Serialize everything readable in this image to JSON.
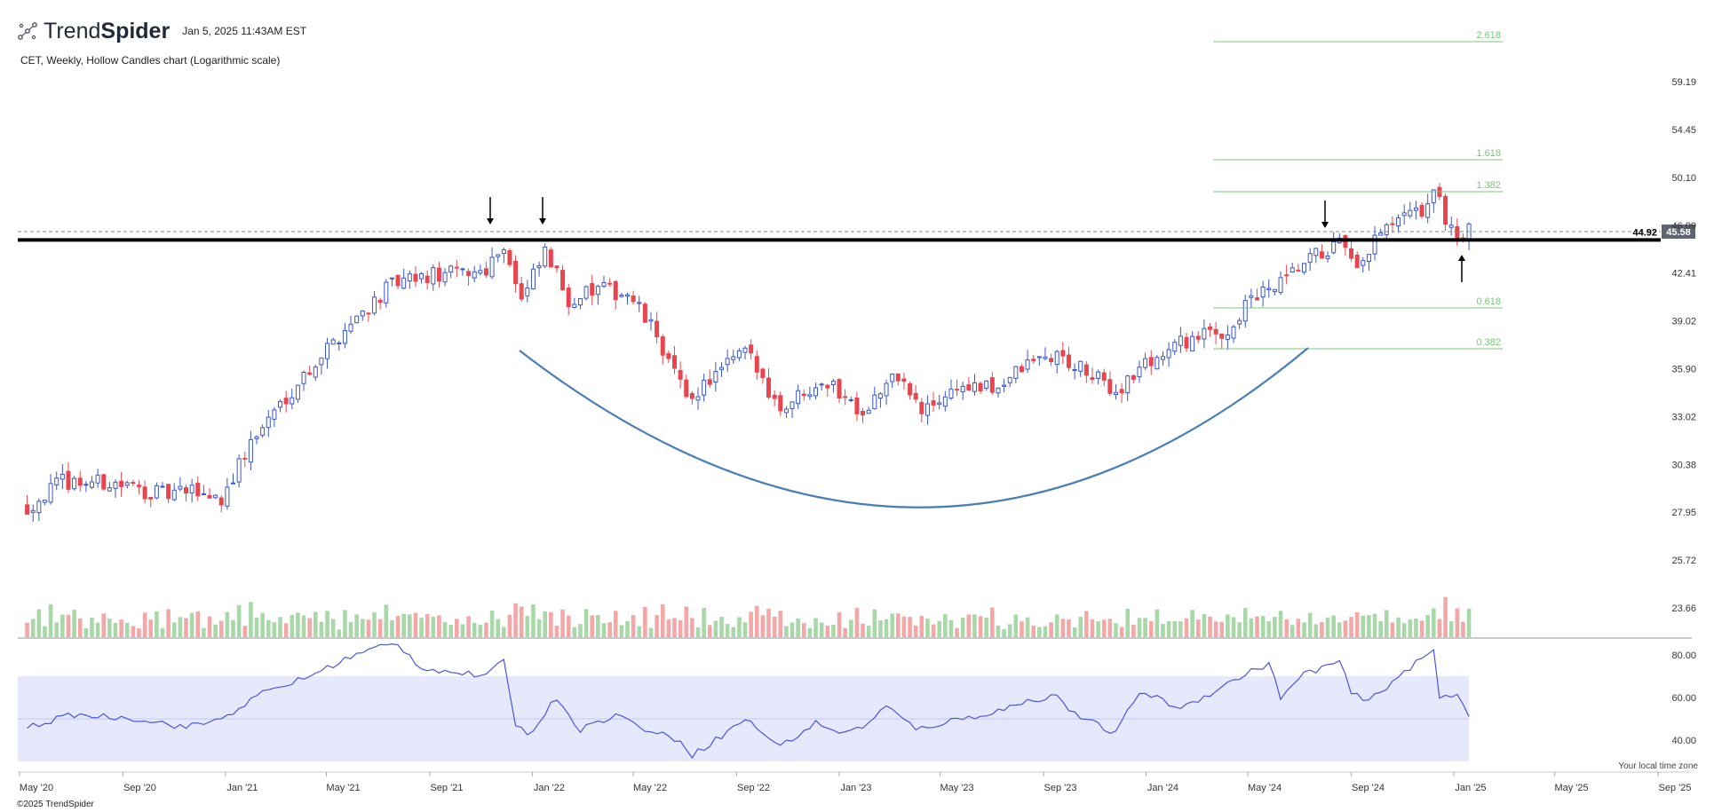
{
  "header": {
    "brand_light": "Trend",
    "brand_bold": "Spider",
    "timestamp": "Jan 5, 2025 11:43AM EST",
    "subtitle": "CET, Weekly, Hollow Candles chart (Logarithmic scale)"
  },
  "footer": {
    "copyright": "©2025 TrendSpider",
    "timezone_note": "Your local time zone"
  },
  "colors": {
    "up": "#3b56c8",
    "down": "#e8454f",
    "vol_up": "#a8d8a8",
    "vol_down": "#f4a7a7",
    "fib": "#7bc47b",
    "arc": "#4a7fb5",
    "rsi_line": "#4b55d6",
    "rsi_band": "#e6e9fb"
  },
  "chart_data": {
    "type": "candlestick",
    "title": "CET, Weekly, Hollow Candles chart (Logarithmic scale)",
    "scale": "log",
    "price_axis_ticks": [
      "59.19",
      "54.45",
      "50.10",
      "46.09",
      "42.41",
      "39.02",
      "35.90",
      "33.02",
      "30.38",
      "27.95",
      "25.72",
      "23.66"
    ],
    "x_axis_ticks": [
      "May '20",
      "Sep '20",
      "Jan '21",
      "May '21",
      "Sep '21",
      "Jan '22",
      "May '22",
      "Sep '22",
      "Jan '23",
      "May '23",
      "Sep '23",
      "Jan '24",
      "May '24",
      "Sep '24",
      "Jan '25",
      "May '25",
      "Sep '25"
    ],
    "time_range": [
      "2020-04-20",
      "2024-12-30"
    ],
    "last_price": "45.58",
    "resistance_level": "44.92",
    "fibonacci_levels": [
      "2.618",
      "1.618",
      "1.382",
      "0.618",
      "0.382"
    ],
    "close_path": [
      [
        "2020-04-20",
        28.2
      ],
      [
        "2020-06-01",
        29.5
      ],
      [
        "2020-08-01",
        29.4
      ],
      [
        "2020-10-01",
        28.8
      ],
      [
        "2020-11-09",
        29.0
      ],
      [
        "2020-12-07",
        28.6
      ],
      [
        "2021-01-11",
        31.5
      ],
      [
        "2021-02-15",
        33.8
      ],
      [
        "2021-04-01",
        36.5
      ],
      [
        "2021-05-15",
        39.2
      ],
      [
        "2021-06-28",
        41.5
      ],
      [
        "2021-08-15",
        42.2
      ],
      [
        "2021-10-15",
        42.6
      ],
      [
        "2021-11-08",
        44.6
      ],
      [
        "2021-11-29",
        40.3
      ],
      [
        "2021-12-27",
        43.9
      ],
      [
        "2022-01-24",
        40.5
      ],
      [
        "2022-03-01",
        41.2
      ],
      [
        "2022-04-04",
        40.9
      ],
      [
        "2022-05-09",
        38.0
      ],
      [
        "2022-06-13",
        34.0
      ],
      [
        "2022-07-25",
        35.8
      ],
      [
        "2022-08-22",
        37.0
      ],
      [
        "2022-10-03",
        33.5
      ],
      [
        "2022-11-21",
        35.3
      ],
      [
        "2023-01-09",
        33.4
      ],
      [
        "2023-02-20",
        35.5
      ],
      [
        "2023-03-20",
        33.2
      ],
      [
        "2023-05-01",
        34.8
      ],
      [
        "2023-06-12",
        34.6
      ],
      [
        "2023-07-31",
        36.4
      ],
      [
        "2023-08-28",
        36.7
      ],
      [
        "2023-10-09",
        35.4
      ],
      [
        "2023-11-06",
        34.5
      ],
      [
        "2023-12-11",
        36.2
      ],
      [
        "2024-02-01",
        37.8
      ],
      [
        "2024-03-18",
        38.3
      ],
      [
        "2024-04-15",
        40.5
      ],
      [
        "2024-05-20",
        41.5
      ],
      [
        "2024-06-24",
        43.4
      ],
      [
        "2024-07-29",
        44.6
      ],
      [
        "2024-08-19",
        42.3
      ],
      [
        "2024-09-09",
        44.9
      ],
      [
        "2024-10-07",
        46.4
      ],
      [
        "2024-11-04",
        47.2
      ],
      [
        "2024-11-18",
        48.9
      ],
      [
        "2024-12-02",
        46.8
      ],
      [
        "2024-12-16",
        45.0
      ],
      [
        "2024-12-30",
        45.58
      ]
    ],
    "rsi": {
      "name": "RSI",
      "axis_ticks": [
        "80.00",
        "60.00",
        "40.00"
      ],
      "band": [
        30,
        70
      ],
      "midline": 50,
      "path": [
        [
          "2020-04-20",
          46
        ],
        [
          "2020-06-15",
          52
        ],
        [
          "2020-09-01",
          50
        ],
        [
          "2020-10-26",
          46
        ],
        [
          "2020-12-07",
          50
        ],
        [
          "2021-01-25",
          62
        ],
        [
          "2021-03-22",
          70
        ],
        [
          "2021-05-03",
          78
        ],
        [
          "2021-06-14",
          84
        ],
        [
          "2021-07-05",
          85
        ],
        [
          "2021-08-02",
          74
        ],
        [
          "2021-09-06",
          72
        ],
        [
          "2021-10-18",
          70
        ],
        [
          "2021-11-08",
          77
        ],
        [
          "2021-11-22",
          48
        ],
        [
          "2021-12-06",
          42
        ],
        [
          "2022-01-10",
          60
        ],
        [
          "2022-02-07",
          45
        ],
        [
          "2022-03-21",
          52
        ],
        [
          "2022-05-02",
          44
        ],
        [
          "2022-06-06",
          40
        ],
        [
          "2022-06-20",
          33
        ],
        [
          "2022-07-25",
          42
        ],
        [
          "2022-08-22",
          50
        ],
        [
          "2022-10-03",
          37
        ],
        [
          "2022-11-14",
          48
        ],
        [
          "2022-12-19",
          43
        ],
        [
          "2023-01-16",
          48
        ],
        [
          "2023-02-06",
          56
        ],
        [
          "2023-03-13",
          45
        ],
        [
          "2023-04-24",
          49
        ],
        [
          "2023-06-12",
          53
        ],
        [
          "2023-07-31",
          59
        ],
        [
          "2023-08-28",
          61
        ],
        [
          "2023-09-18",
          52
        ],
        [
          "2023-11-06",
          43
        ],
        [
          "2023-12-04",
          63
        ],
        [
          "2024-01-22",
          55
        ],
        [
          "2024-02-26",
          62
        ],
        [
          "2024-04-08",
          71
        ],
        [
          "2024-05-06",
          76
        ],
        [
          "2024-05-20",
          60
        ],
        [
          "2024-06-17",
          71
        ],
        [
          "2024-07-29",
          77
        ],
        [
          "2024-08-12",
          62
        ],
        [
          "2024-09-02",
          58
        ],
        [
          "2024-10-07",
          70
        ],
        [
          "2024-10-28",
          76
        ],
        [
          "2024-11-18",
          82
        ],
        [
          "2024-11-25",
          60
        ],
        [
          "2024-12-16",
          62
        ],
        [
          "2024-12-30",
          52
        ]
      ]
    }
  }
}
